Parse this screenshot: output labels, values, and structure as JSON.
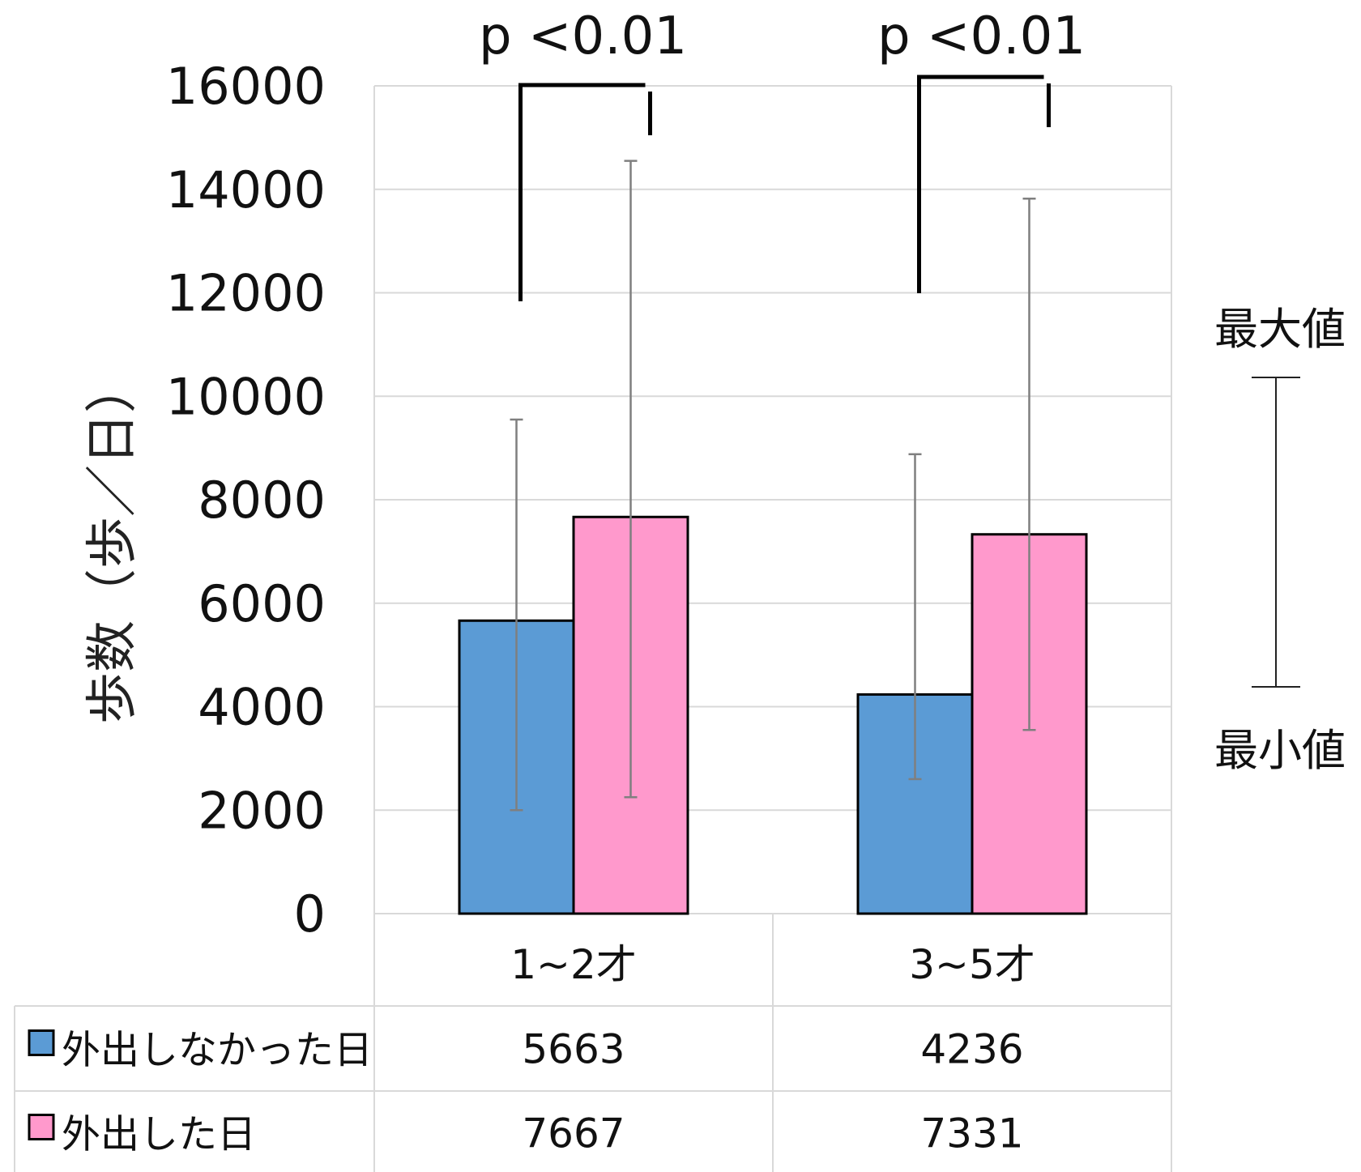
{
  "chart_data": {
    "type": "bar",
    "ylabel": "歩数（歩／日）",
    "ylim": [
      0,
      16000
    ],
    "yticks": [
      0,
      2000,
      4000,
      6000,
      8000,
      10000,
      12000,
      14000,
      16000
    ],
    "categories": [
      "1~2才",
      "3~5才"
    ],
    "series": [
      {
        "name": "外出しなかった日",
        "color": "#5b9bd5",
        "values": [
          5663,
          4236
        ],
        "err_low": [
          2000,
          2600
        ],
        "err_high": [
          9550,
          8880
        ]
      },
      {
        "name": "外出した日",
        "color": "#ff99cc",
        "values": [
          7667,
          7331
        ],
        "err_low": [
          2250,
          3550
        ],
        "err_high": [
          14550,
          13820
        ]
      }
    ],
    "significance": [
      {
        "label": "p <0.01",
        "category": 0
      },
      {
        "label": "p <0.01",
        "category": 1
      }
    ],
    "grid": true,
    "data_table": true
  },
  "side_legend": {
    "max_label": "最大値",
    "min_label": "最小値"
  }
}
